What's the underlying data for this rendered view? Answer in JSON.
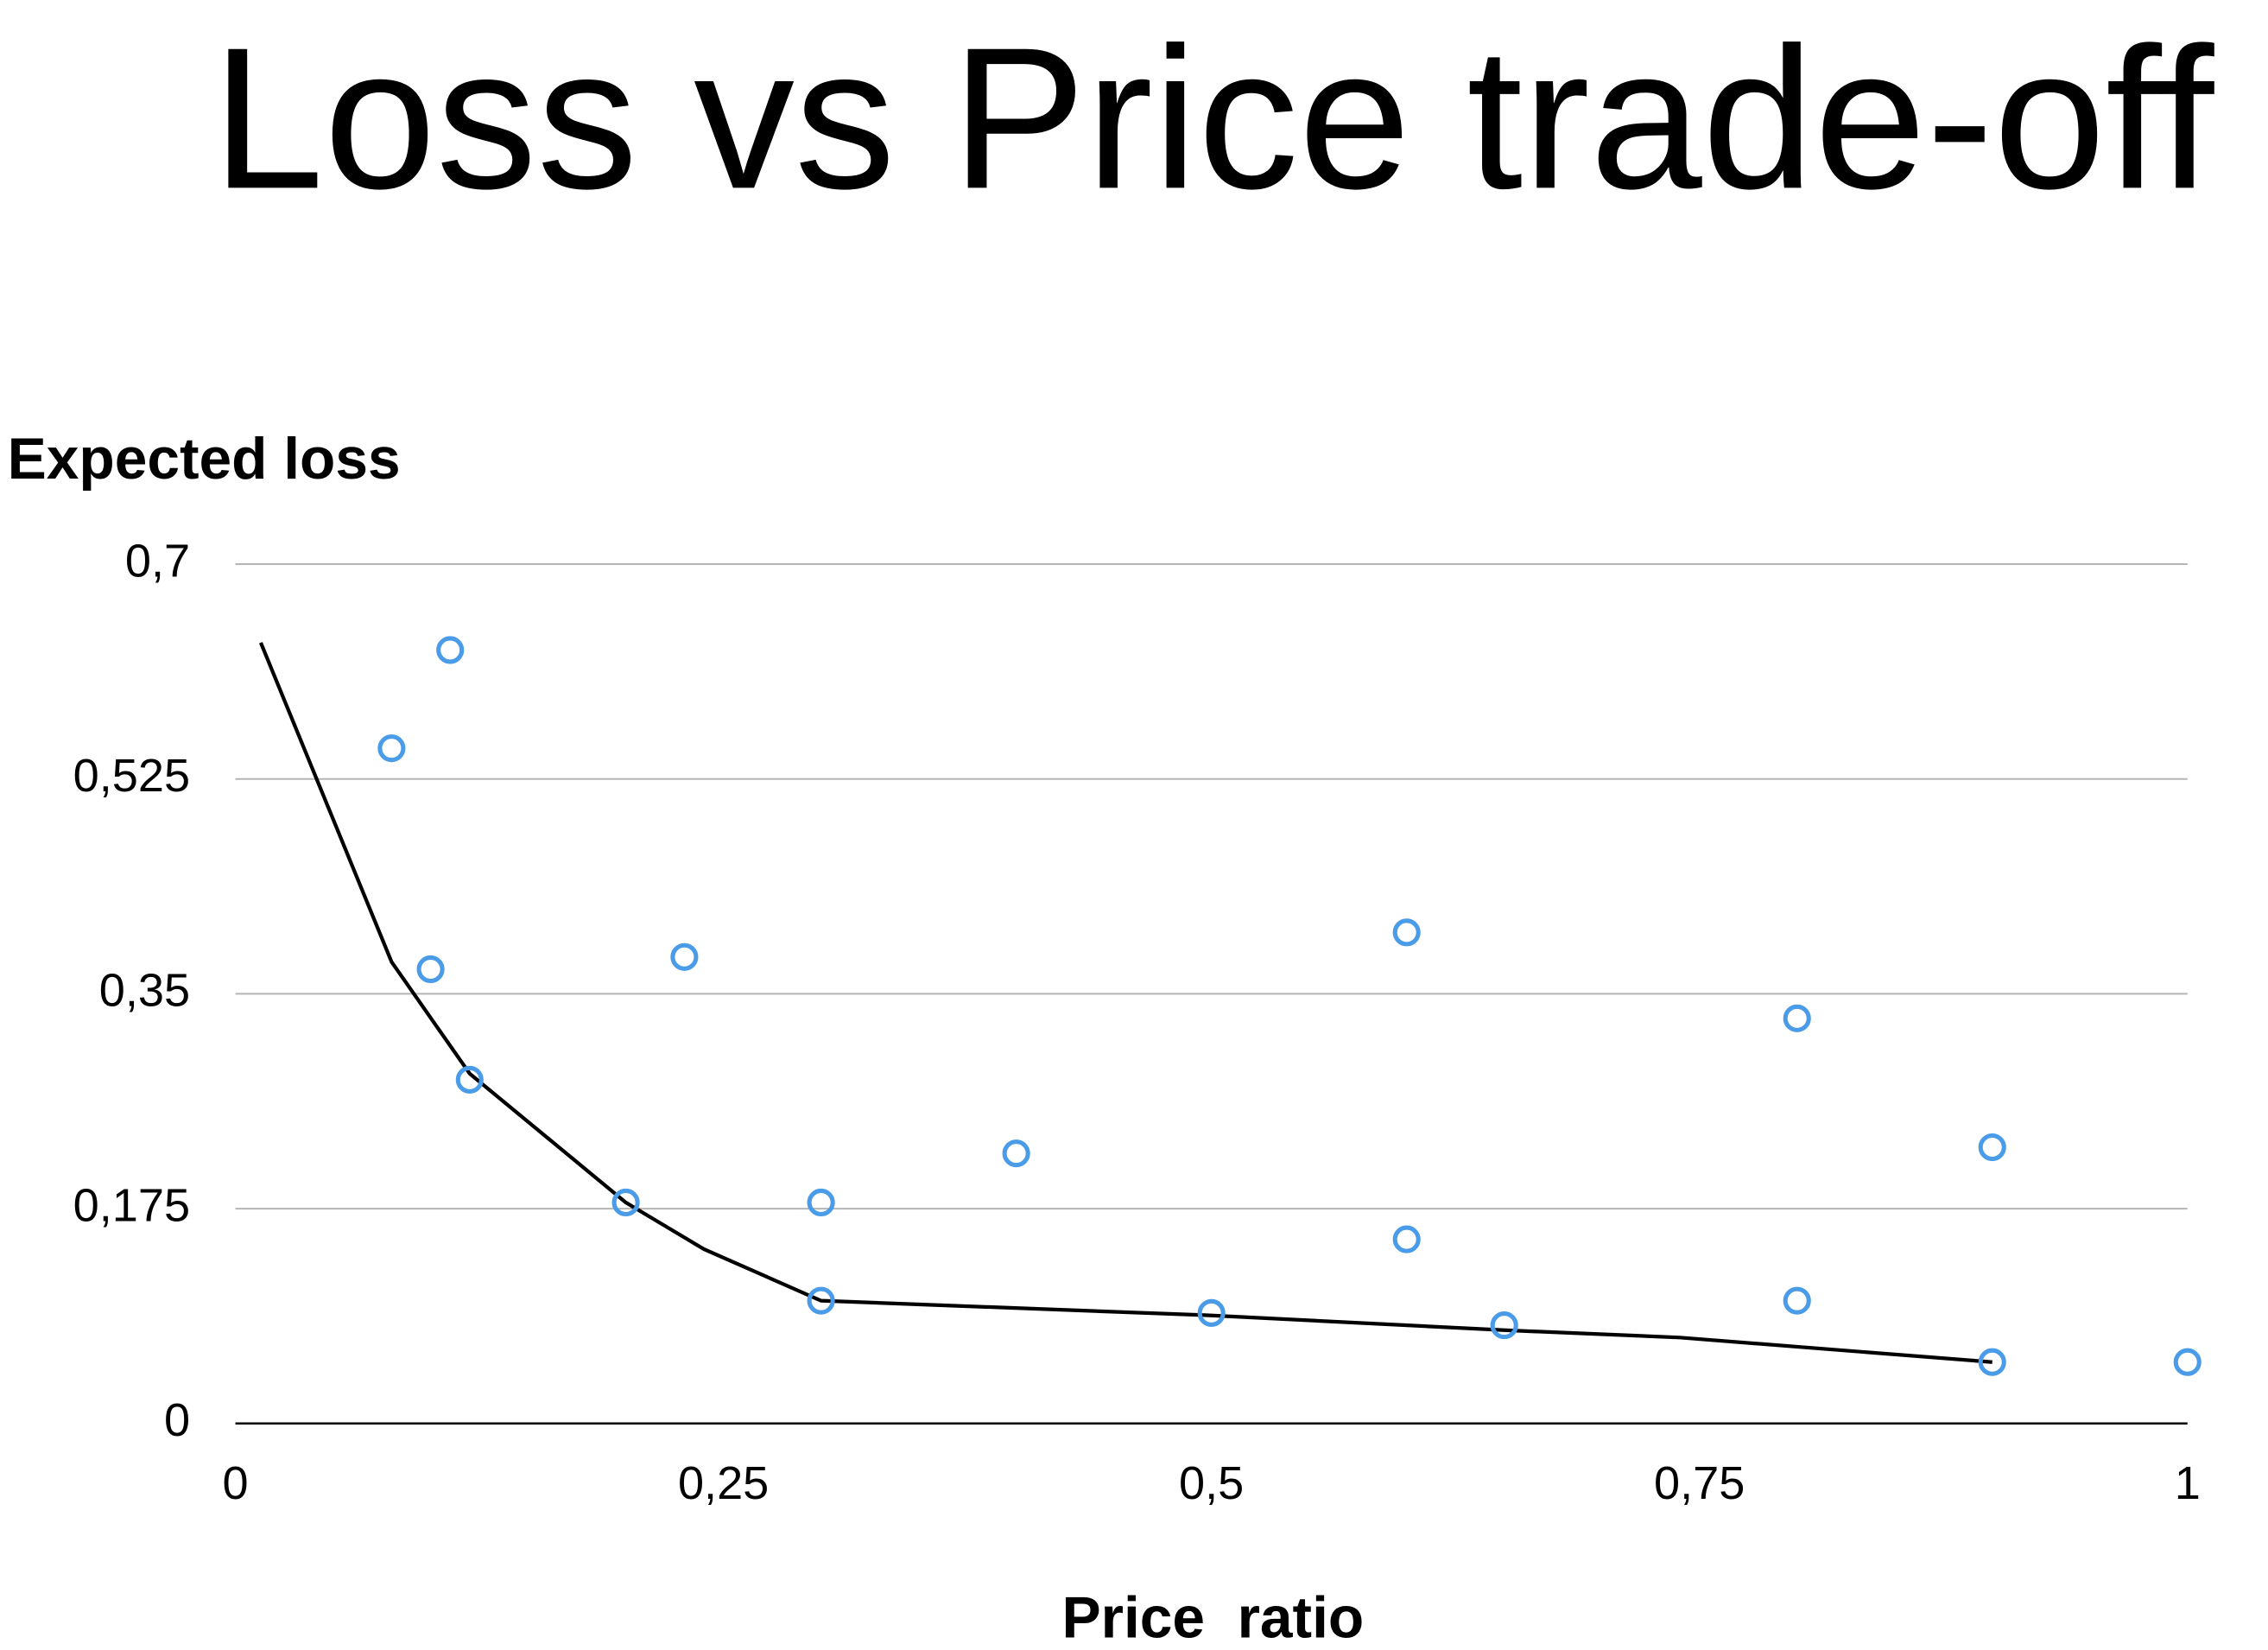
{
  "chart_data": {
    "type": "scatter",
    "title": "Loss vs Price trade-off",
    "x_label": "Price  ratio",
    "y_label": "Expected loss",
    "xlim": [
      0,
      1
    ],
    "ylim": [
      0,
      0.7
    ],
    "xticks": [
      0,
      {
        "value": 0.25,
        "label": "0,25"
      },
      {
        "value": 0.5,
        "label": "0,5"
      },
      {
        "value": 0.75,
        "label": "0,75"
      },
      1
    ],
    "yticks": [
      0,
      {
        "value": 0.175,
        "label": "0,175"
      },
      {
        "value": 0.35,
        "label": "0,35"
      },
      {
        "value": 0.525,
        "label": "0,525"
      },
      {
        "value": 0.7,
        "label": "0,7"
      }
    ],
    "grid": true,
    "series": [
      {
        "type": "scatter",
        "color": "#4a9be8",
        "x": [
          0.08,
          0.11,
          0.1,
          0.12,
          0.2,
          0.23,
          0.3,
          0.3,
          0.4,
          0.5,
          0.6,
          0.6,
          0.65,
          0.8,
          0.8,
          0.9,
          0.9,
          1
        ],
        "values": [
          0.55,
          0.63,
          0.37,
          0.28,
          0.18,
          0.38,
          0.18,
          0.1,
          0.22,
          0.09,
          0.4,
          0.15,
          0.08,
          0.33,
          0.1,
          0.225,
          0.05,
          0.05
        ]
      },
      {
        "type": "line",
        "color": "#000000",
        "x": [
          0.013,
          0.08,
          0.12,
          0.2,
          0.24,
          0.3,
          0.5,
          0.65,
          0.74,
          0.9
        ],
        "values": [
          0.636,
          0.376,
          0.285,
          0.18,
          0.142,
          0.1,
          0.088,
          0.076,
          0.07,
          0.05
        ]
      }
    ]
  }
}
